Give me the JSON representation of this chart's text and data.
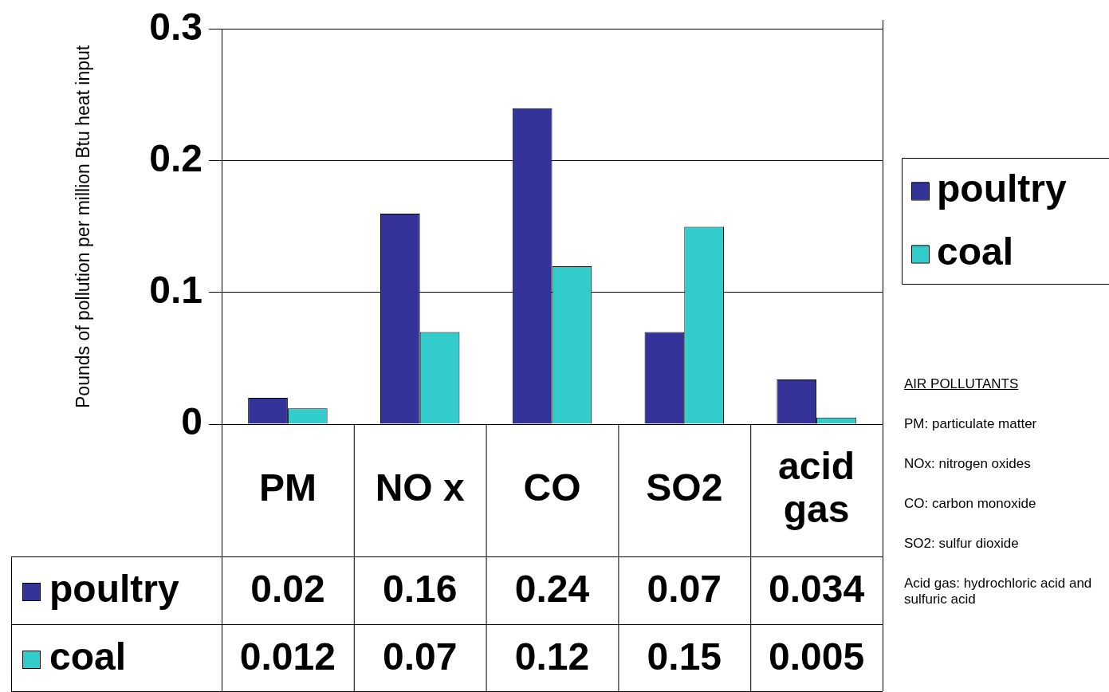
{
  "chart_data": {
    "type": "bar",
    "ylabel": "Pounds of pollution per million Btu heat input",
    "categories": [
      "PM",
      "NO x",
      "CO",
      "SO2",
      "acid gas"
    ],
    "series": [
      {
        "name": "poultry",
        "color": "#333399",
        "values": [
          0.02,
          0.16,
          0.24,
          0.07,
          0.034
        ]
      },
      {
        "name": "coal",
        "color": "#33cccc",
        "values": [
          0.012,
          0.07,
          0.12,
          0.15,
          0.005
        ]
      }
    ],
    "ylim": [
      0,
      0.3
    ],
    "yticks": [
      0,
      0.1,
      0.2,
      0.3
    ],
    "grid": "y",
    "legend": "right",
    "data_labels": true,
    "annotations": [
      "AIR POLLUTANTS",
      "PM: particulate matter",
      "NOx: nitrogen oxides",
      "CO: carbon monoxide",
      "SO2: sulfur dioxide",
      "Acid gas: hydrochloric acid and sulfuric acid"
    ]
  }
}
